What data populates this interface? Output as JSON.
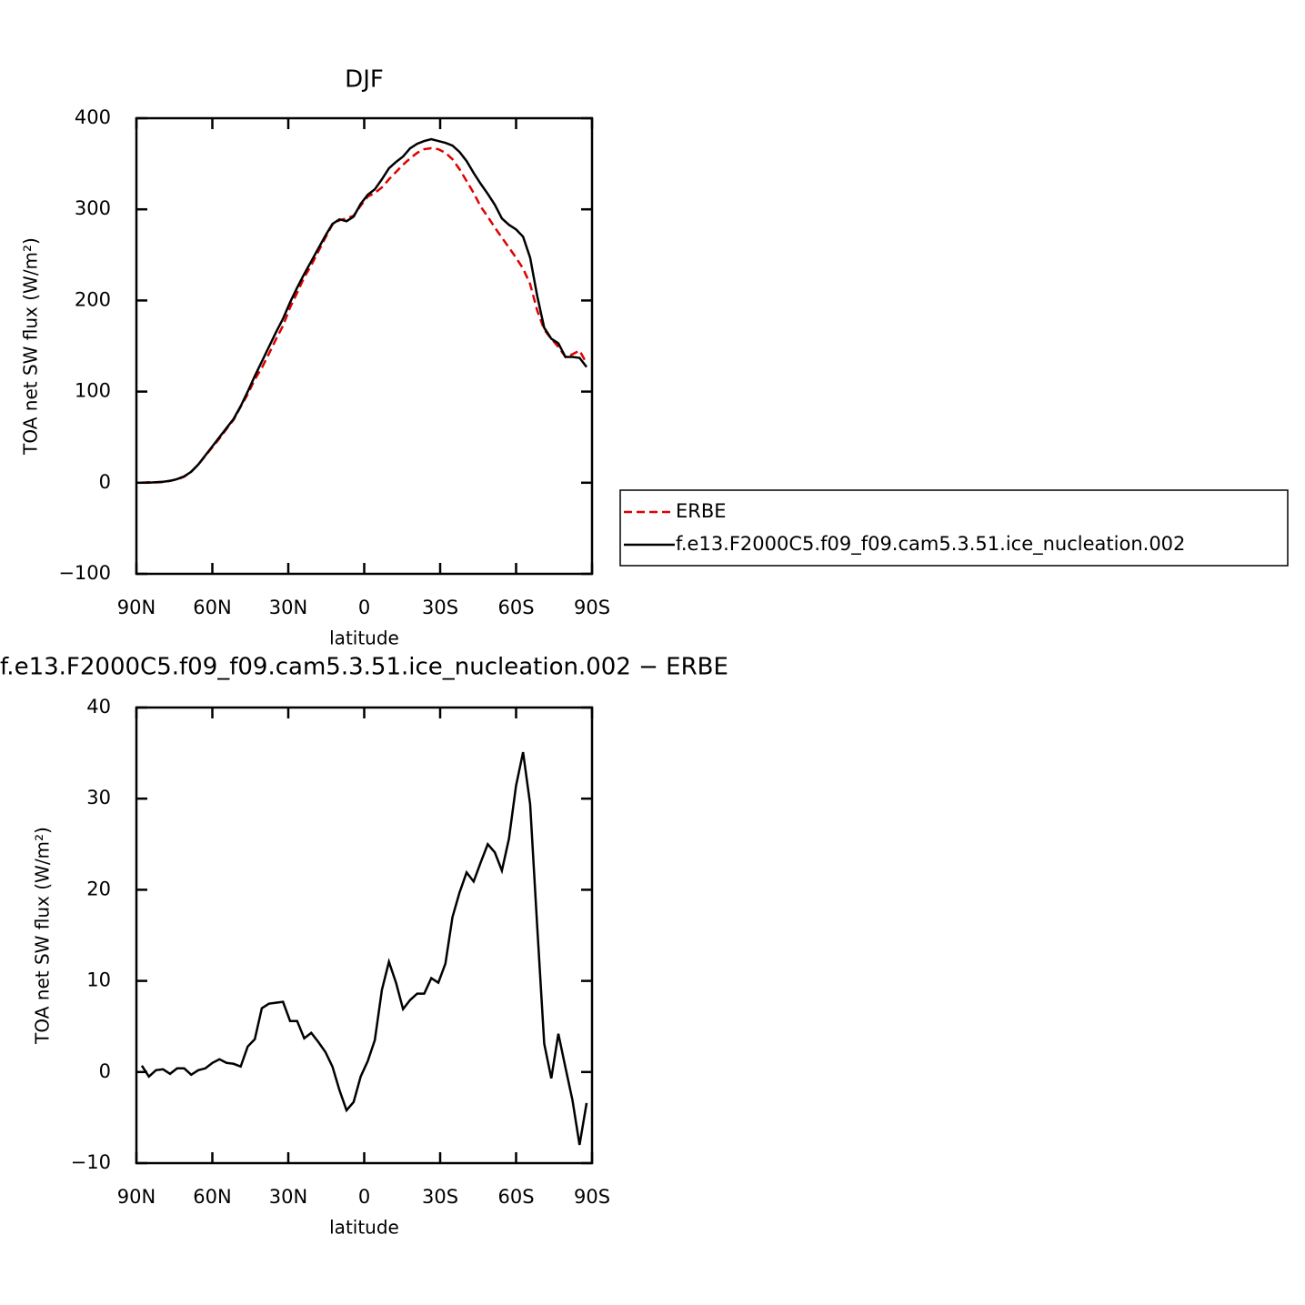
{
  "chart_data": [
    {
      "type": "line",
      "title": "DJF",
      "x_label": "latitude",
      "y_label": "TOA net SW flux (W/m²)",
      "x": [
        87.86,
        85.07,
        82.28,
        79.49,
        76.7,
        73.91,
        71.12,
        68.34,
        65.55,
        62.76,
        59.97,
        57.18,
        54.39,
        51.6,
        48.81,
        46.02,
        43.23,
        40.45,
        37.66,
        34.87,
        32.08,
        29.29,
        26.5,
        23.71,
        20.92,
        18.14,
        15.35,
        12.56,
        9.77,
        6.98,
        4.19,
        1.4,
        -1.4,
        -4.19,
        -6.98,
        -9.77,
        -12.56,
        -15.35,
        -18.14,
        -20.92,
        -23.71,
        -26.5,
        -29.29,
        -32.08,
        -34.87,
        -37.66,
        -40.45,
        -43.23,
        -46.02,
        -48.81,
        -51.6,
        -54.39,
        -57.18,
        -59.97,
        -62.76,
        -65.55,
        -68.34,
        -71.12,
        -73.91,
        -76.7,
        -79.49,
        -82.28,
        -85.07,
        -87.86
      ],
      "series": [
        {
          "name": "ERBE",
          "color": "#e00000",
          "line_style": "dashed",
          "values": [
            0,
            0.5,
            0.3,
            0.7,
            2.2,
            3.6,
            6.6,
            12.3,
            19.8,
            29.6,
            39,
            48.6,
            59,
            69.1,
            83.4,
            97.2,
            113.4,
            126,
            141.5,
            157.4,
            172.3,
            192.4,
            208.4,
            225.3,
            238.7,
            253.7,
            268.8,
            283.4,
            288,
            290,
            293,
            304,
            314,
            318,
            324,
            333,
            341,
            349,
            356,
            362,
            366,
            367,
            366,
            362,
            355,
            344,
            331,
            318,
            303,
            292,
            280,
            269,
            258,
            247,
            235,
            218,
            189,
            168,
            158,
            149,
            138,
            141,
            145,
            131
          ]
        },
        {
          "name": "f.e13.F2000C5.f09_f09.cam5.3.51.ice_nucleation.002",
          "color": "#000000",
          "line_style": "solid",
          "values": [
            0,
            0,
            0.5,
            1,
            2,
            4,
            7,
            12,
            20,
            30,
            40,
            50,
            60,
            70,
            84,
            100,
            117,
            133,
            149,
            165,
            180,
            198,
            214,
            229,
            243,
            257,
            271,
            284,
            289,
            287,
            292,
            306,
            316,
            322,
            333,
            345,
            352,
            358,
            367,
            372,
            375,
            377,
            375,
            373,
            370,
            363,
            353,
            340,
            328,
            317,
            305,
            290,
            283,
            278,
            270,
            247,
            205,
            170,
            158,
            153,
            138,
            138,
            137,
            127
          ]
        }
      ],
      "xlim": [
        90,
        -90
      ],
      "xticks": [
        {
          "value": 90,
          "label": "90N"
        },
        {
          "value": 60,
          "label": "60N"
        },
        {
          "value": 30,
          "label": "30N"
        },
        0,
        {
          "value": -30,
          "label": "30S"
        },
        {
          "value": -60,
          "label": "60S"
        },
        {
          "value": -90,
          "label": "90S"
        }
      ],
      "ylim": [
        -100,
        400
      ],
      "yticks": [
        {
          "value": -100,
          "label": "−100"
        },
        0,
        100,
        200,
        300,
        400
      ]
    },
    {
      "type": "line",
      "title": "f.e13.F2000C5.f09_f09.cam5.3.51.ice_nucleation.002 − ERBE",
      "x_label": "latitude",
      "y_label": "TOA net SW flux (W/m²)",
      "x": [
        87.86,
        85.07,
        82.28,
        79.49,
        76.7,
        73.91,
        71.12,
        68.34,
        65.55,
        62.76,
        59.97,
        57.18,
        54.39,
        51.6,
        48.81,
        46.02,
        43.23,
        40.45,
        37.66,
        34.87,
        32.08,
        29.29,
        26.5,
        23.71,
        20.92,
        18.14,
        15.35,
        12.56,
        9.77,
        6.98,
        4.19,
        1.4,
        -1.4,
        -4.19,
        -6.98,
        -9.77,
        -12.56,
        -15.35,
        -18.14,
        -20.92,
        -23.71,
        -26.5,
        -29.29,
        -32.08,
        -34.87,
        -37.66,
        -40.45,
        -43.23,
        -46.02,
        -48.81,
        -51.6,
        -54.39,
        -57.18,
        -59.97,
        -62.76,
        -65.55,
        -68.34,
        -71.12,
        -73.91,
        -76.7,
        -79.49,
        -82.28,
        -85.07,
        -87.86
      ],
      "values": [
        0.7,
        -0.5,
        0.2,
        0.3,
        -0.2,
        0.4,
        0.4,
        -0.3,
        0.2,
        0.4,
        1.0,
        1.4,
        1.0,
        0.9,
        0.6,
        2.8,
        3.6,
        7.0,
        7.5,
        7.6,
        7.7,
        5.6,
        5.6,
        3.7,
        4.3,
        3.3,
        2.2,
        0.6,
        -2.0,
        -4.2,
        -3.3,
        -0.5,
        1.2,
        3.5,
        9.0,
        12.1,
        9.8,
        6.9,
        7.9,
        8.6,
        8.6,
        10.3,
        9.8,
        11.9,
        17.0,
        19.7,
        21.9,
        20.9,
        23.0,
        25.0,
        24.1,
        22.1,
        25.6,
        31.4,
        35.1,
        29.4,
        16.0,
        3.1,
        -0.7,
        4.2,
        0.5,
        -3.1,
        -8.0,
        -3.4
      ],
      "color": "#000000",
      "line_style": "solid",
      "xlim": [
        90,
        -90
      ],
      "xticks": [
        {
          "value": 90,
          "label": "90N"
        },
        {
          "value": 60,
          "label": "60N"
        },
        {
          "value": 30,
          "label": "30N"
        },
        0,
        {
          "value": -30,
          "label": "30S"
        },
        {
          "value": -60,
          "label": "60S"
        },
        {
          "value": -90,
          "label": "90S"
        }
      ],
      "ylim": [
        -10,
        40
      ],
      "yticks": [
        {
          "value": -10,
          "label": "−10"
        },
        0,
        10,
        20,
        30,
        40
      ]
    }
  ]
}
